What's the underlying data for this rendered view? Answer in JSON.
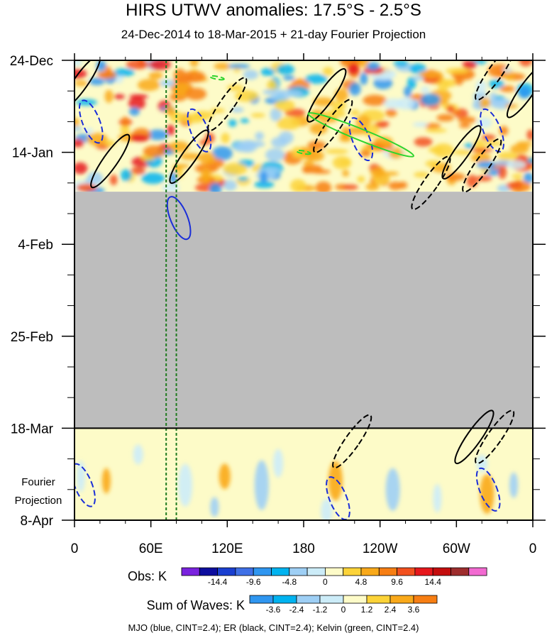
{
  "chart_data": {
    "type": "heatmap",
    "title": "HIRS UTWV anomalies: 17.5°S - 2.5°S",
    "subtitle": "24-Dec-2014 to 18-Mar-2015 + 21-day Fourier Projection",
    "x_ticks": [
      "0",
      "60E",
      "120E",
      "180",
      "120W",
      "60W",
      "0"
    ],
    "x_tick_values": [
      0,
      60,
      120,
      180,
      240,
      300,
      360
    ],
    "y_ticks": [
      "24-Dec",
      "14-Jan",
      "4-Feb",
      "25-Feb",
      "18-Mar",
      "8-Apr"
    ],
    "y_tick_days": [
      0,
      21,
      42,
      63,
      84,
      105
    ],
    "projection_label_line1": "Fourier",
    "projection_label_line2": "Projection",
    "missing_data_days": [
      30,
      84
    ],
    "obs_colorbar": {
      "title": "Obs: K",
      "labels": [
        "-14.4",
        "-9.6",
        "-4.8",
        "0",
        "4.8",
        "9.6",
        "14.4"
      ],
      "colors": [
        "#7a22de",
        "#0d0d9e",
        "#1a3fd0",
        "#3f70e6",
        "#2f96f0",
        "#00b3f0",
        "#9ecff5",
        "#ccecf8",
        "#fdfbc8",
        "#fcd338",
        "#f9a91a",
        "#f77e13",
        "#f2501e",
        "#e6171c",
        "#c40d0d",
        "#9e2d2d",
        "#f26ad1"
      ]
    },
    "waves_colorbar": {
      "title": "Sum of Waves: K",
      "labels": [
        "-3.6",
        "-2.4",
        "-1.2",
        "0",
        "1.2",
        "2.4",
        "3.6"
      ],
      "colors": [
        "#2f96f0",
        "#00b3f0",
        "#9ecff5",
        "#ccecf8",
        "#fdfbc8",
        "#fcd338",
        "#f9a91a",
        "#f77e13"
      ]
    },
    "reference_lines_lon": [
      72,
      80
    ],
    "contours": [
      {
        "wave": "MJO",
        "color": "#1a2ed8",
        "lon": 13,
        "day": 14,
        "sign": "neg"
      },
      {
        "wave": "MJO",
        "color": "#1a2ed8",
        "lon": 98,
        "day": 16,
        "sign": "neg"
      },
      {
        "wave": "MJO",
        "color": "#1a2ed8",
        "lon": 225,
        "day": 18,
        "sign": "neg"
      },
      {
        "wave": "MJO",
        "color": "#1a2ed8",
        "lon": 328,
        "day": 16,
        "sign": "neg"
      },
      {
        "wave": "MJO",
        "color": "#1a2ed8",
        "lon": 82,
        "day": 36,
        "sign": "pos"
      },
      {
        "wave": "MJO",
        "color": "#1a2ed8",
        "lon": 7,
        "day": 97,
        "sign": "neg"
      },
      {
        "wave": "MJO",
        "color": "#1a2ed8",
        "lon": 207,
        "day": 100,
        "sign": "neg"
      },
      {
        "wave": "MJO",
        "color": "#1a2ed8",
        "lon": 325,
        "day": 98,
        "sign": "neg"
      },
      {
        "wave": "ER",
        "color": "#000000",
        "lon": 5,
        "day": 5,
        "sign": "pos"
      },
      {
        "wave": "ER",
        "color": "#000000",
        "lon": 28,
        "day": 23,
        "sign": "pos"
      },
      {
        "wave": "ER",
        "color": "#000000",
        "lon": 90,
        "day": 22,
        "sign": "pos"
      },
      {
        "wave": "ER",
        "color": "#000000",
        "lon": 120,
        "day": 10,
        "sign": "neg"
      },
      {
        "wave": "ER",
        "color": "#000000",
        "lon": 198,
        "day": 8,
        "sign": "pos"
      },
      {
        "wave": "ER",
        "color": "#000000",
        "lon": 203,
        "day": 15,
        "sign": "neg"
      },
      {
        "wave": "ER",
        "color": "#000000",
        "lon": 280,
        "day": 28,
        "sign": "neg"
      },
      {
        "wave": "ER",
        "color": "#000000",
        "lon": 304,
        "day": 21,
        "sign": "pos"
      },
      {
        "wave": "ER",
        "color": "#000000",
        "lon": 330,
        "day": 3,
        "sign": "neg"
      },
      {
        "wave": "ER",
        "color": "#000000",
        "lon": 320,
        "day": 24,
        "sign": "neg"
      },
      {
        "wave": "ER",
        "color": "#000000",
        "lon": 355,
        "day": 7,
        "sign": "pos"
      },
      {
        "wave": "ER",
        "color": "#000000",
        "lon": 218,
        "day": 87,
        "sign": "neg"
      },
      {
        "wave": "ER",
        "color": "#000000",
        "lon": 314,
        "day": 86,
        "sign": "pos"
      },
      {
        "wave": "ER",
        "color": "#000000",
        "lon": 330,
        "day": 86,
        "sign": "neg"
      },
      {
        "wave": "Kelvin",
        "color": "#2ed42e",
        "lon": 225,
        "day": 17,
        "sign": "pos"
      },
      {
        "wave": "Kelvin",
        "color": "#2ed42e",
        "lon": 112,
        "day": 4,
        "sign": "neg"
      },
      {
        "wave": "Kelvin",
        "color": "#2ed42e",
        "lon": 180,
        "day": 21,
        "sign": "neg"
      }
    ],
    "legend_text": "MJO (blue, CINT=2.4); ER (black, CINT=2.4); Kelvin (green, CINT=2.4)"
  }
}
